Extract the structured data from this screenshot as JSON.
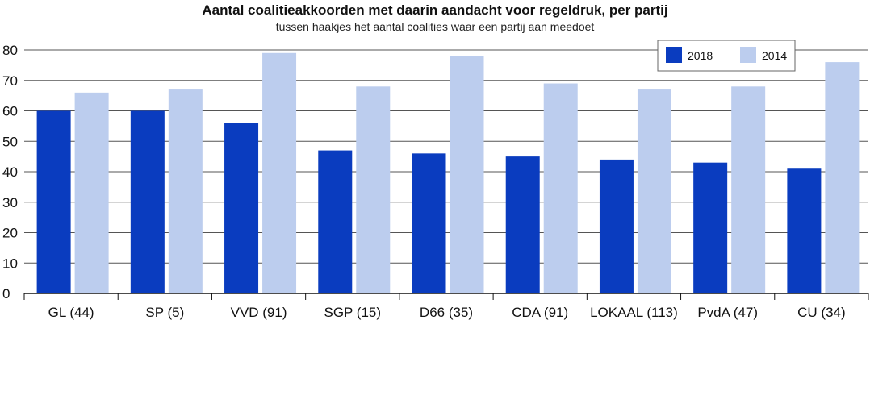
{
  "chart_data": {
    "type": "bar",
    "title": "Aantal coalitieakkoorden met daarin aandacht voor regeldruk, per partij",
    "subtitle": "tussen haakjes het aantal coalities waar een partij aan meedoet",
    "categories": [
      "GL (44)",
      "SP (5)",
      "VVD (91)",
      "SGP (15)",
      "D66 (35)",
      "CDA (91)",
      "LOKAAL (113)",
      "PvdA (47)",
      "CU (34)"
    ],
    "series": [
      {
        "name": "2018",
        "color": "#0a3cbf",
        "values": [
          60,
          60,
          56,
          47,
          46,
          45,
          44,
          43,
          41
        ]
      },
      {
        "name": "2014",
        "color": "#bccdee",
        "values": [
          66,
          67,
          79,
          68,
          78,
          69,
          67,
          68,
          76
        ]
      }
    ],
    "ylim": [
      0,
      80
    ],
    "yticks": [
      0,
      10,
      20,
      30,
      40,
      50,
      60,
      70,
      80
    ],
    "grid": true,
    "legend_position": "top-right",
    "xlabel": "",
    "ylabel": ""
  }
}
